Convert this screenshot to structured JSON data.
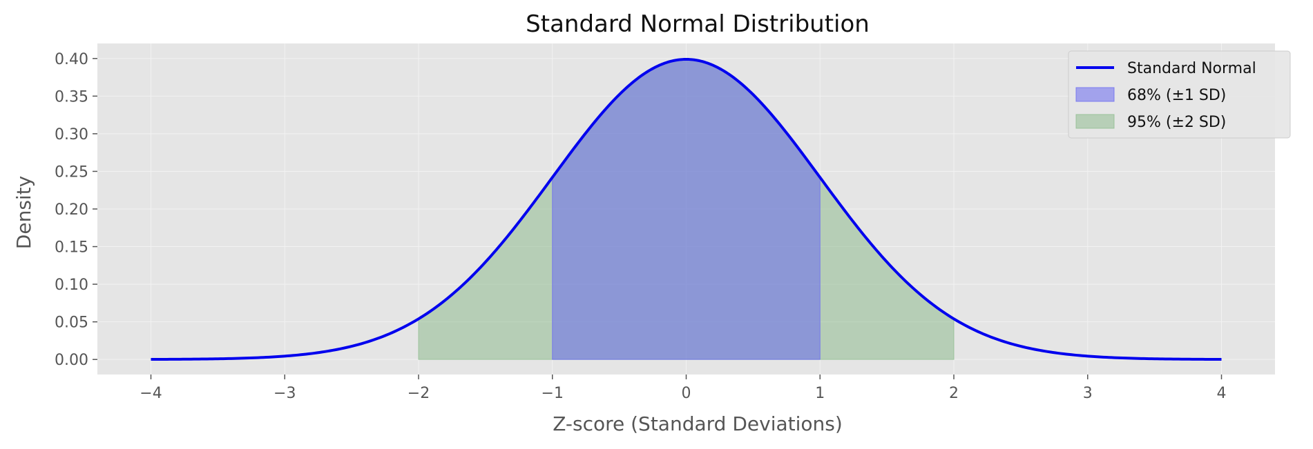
{
  "chart_data": {
    "type": "line",
    "title": "Standard Normal Distribution",
    "xlabel": "Z-score (Standard Deviations)",
    "ylabel": "Density",
    "xlim": [
      -4.4,
      4.4
    ],
    "ylim": [
      -0.02,
      0.42
    ],
    "x_ticks": [
      -4,
      -3,
      -2,
      -1,
      0,
      1,
      2,
      3,
      4
    ],
    "x_tick_labels": [
      "−4",
      "−3",
      "−2",
      "−1",
      "0",
      "1",
      "2",
      "3",
      "4"
    ],
    "y_ticks": [
      0.0,
      0.05,
      0.1,
      0.15,
      0.2,
      0.25,
      0.3,
      0.35,
      0.4
    ],
    "y_tick_labels": [
      "0.00",
      "0.05",
      "0.10",
      "0.15",
      "0.20",
      "0.25",
      "0.30",
      "0.35",
      "0.40"
    ],
    "grid": true,
    "legend_position": "top-right",
    "series": [
      {
        "name": "Standard Normal",
        "kind": "line",
        "color": "#0000ee",
        "function": "standard normal pdf",
        "x_range": [
          -4,
          4
        ],
        "x": [
          -4,
          -3.5,
          -3,
          -2.5,
          -2,
          -1.5,
          -1,
          -0.5,
          0,
          0.5,
          1,
          1.5,
          2,
          2.5,
          3,
          3.5,
          4
        ],
        "y": [
          0.0001,
          0.0009,
          0.0044,
          0.0175,
          0.054,
          0.1295,
          0.242,
          0.3521,
          0.3989,
          0.3521,
          0.242,
          0.1295,
          0.054,
          0.0175,
          0.0044,
          0.0009,
          0.0001
        ]
      }
    ],
    "shaded_regions": [
      {
        "name": "95% (±2 SD)",
        "range": [
          -2,
          2
        ],
        "color": "#8fbc8f"
      },
      {
        "name": "68% (±1 SD)",
        "range": [
          -1,
          1
        ],
        "color": "#6a6af0"
      }
    ],
    "legend_entries": [
      {
        "label": "Standard Normal",
        "kind": "line",
        "color": "#0000ee"
      },
      {
        "label": "68% (±1 SD)",
        "kind": "patch",
        "color": "#6a6af0"
      },
      {
        "label": "95% (±2 SD)",
        "kind": "patch",
        "color": "#8fbc8f"
      }
    ]
  },
  "colors": {
    "plot_background": "#e5e5e5",
    "grid": "#f2f2f2",
    "tick_text": "#555555"
  }
}
